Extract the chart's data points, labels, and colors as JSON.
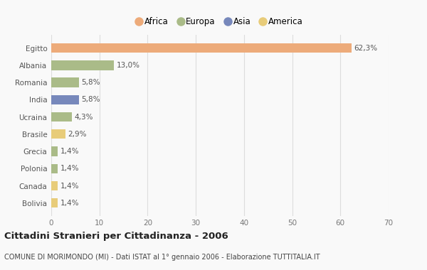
{
  "categories": [
    "Egitto",
    "Albania",
    "Romania",
    "India",
    "Ucraina",
    "Brasile",
    "Grecia",
    "Polonia",
    "Canada",
    "Bolivia"
  ],
  "values": [
    62.3,
    13.0,
    5.8,
    5.8,
    4.3,
    2.9,
    1.4,
    1.4,
    1.4,
    1.4
  ],
  "labels": [
    "62,3%",
    "13,0%",
    "5,8%",
    "5,8%",
    "4,3%",
    "2,9%",
    "1,4%",
    "1,4%",
    "1,4%",
    "1,4%"
  ],
  "colors": [
    "#EDAB7A",
    "#AABB88",
    "#AABB88",
    "#7788BB",
    "#AABB88",
    "#E8CC7A",
    "#AABB88",
    "#AABB88",
    "#E8CC7A",
    "#E8CC7A"
  ],
  "legend_labels": [
    "Africa",
    "Europa",
    "Asia",
    "America"
  ],
  "legend_colors": [
    "#EDAB7A",
    "#AABB88",
    "#7788BB",
    "#E8CC7A"
  ],
  "title": "Cittadini Stranieri per Cittadinanza - 2006",
  "subtitle": "COMUNE DI MORIMONDO (MI) - Dati ISTAT al 1° gennaio 2006 - Elaborazione TUTTITALIA.IT",
  "xlim": [
    0,
    70
  ],
  "xticks": [
    0,
    10,
    20,
    30,
    40,
    50,
    60,
    70
  ],
  "background_color": "#f9f9f9",
  "grid_color": "#dddddd"
}
